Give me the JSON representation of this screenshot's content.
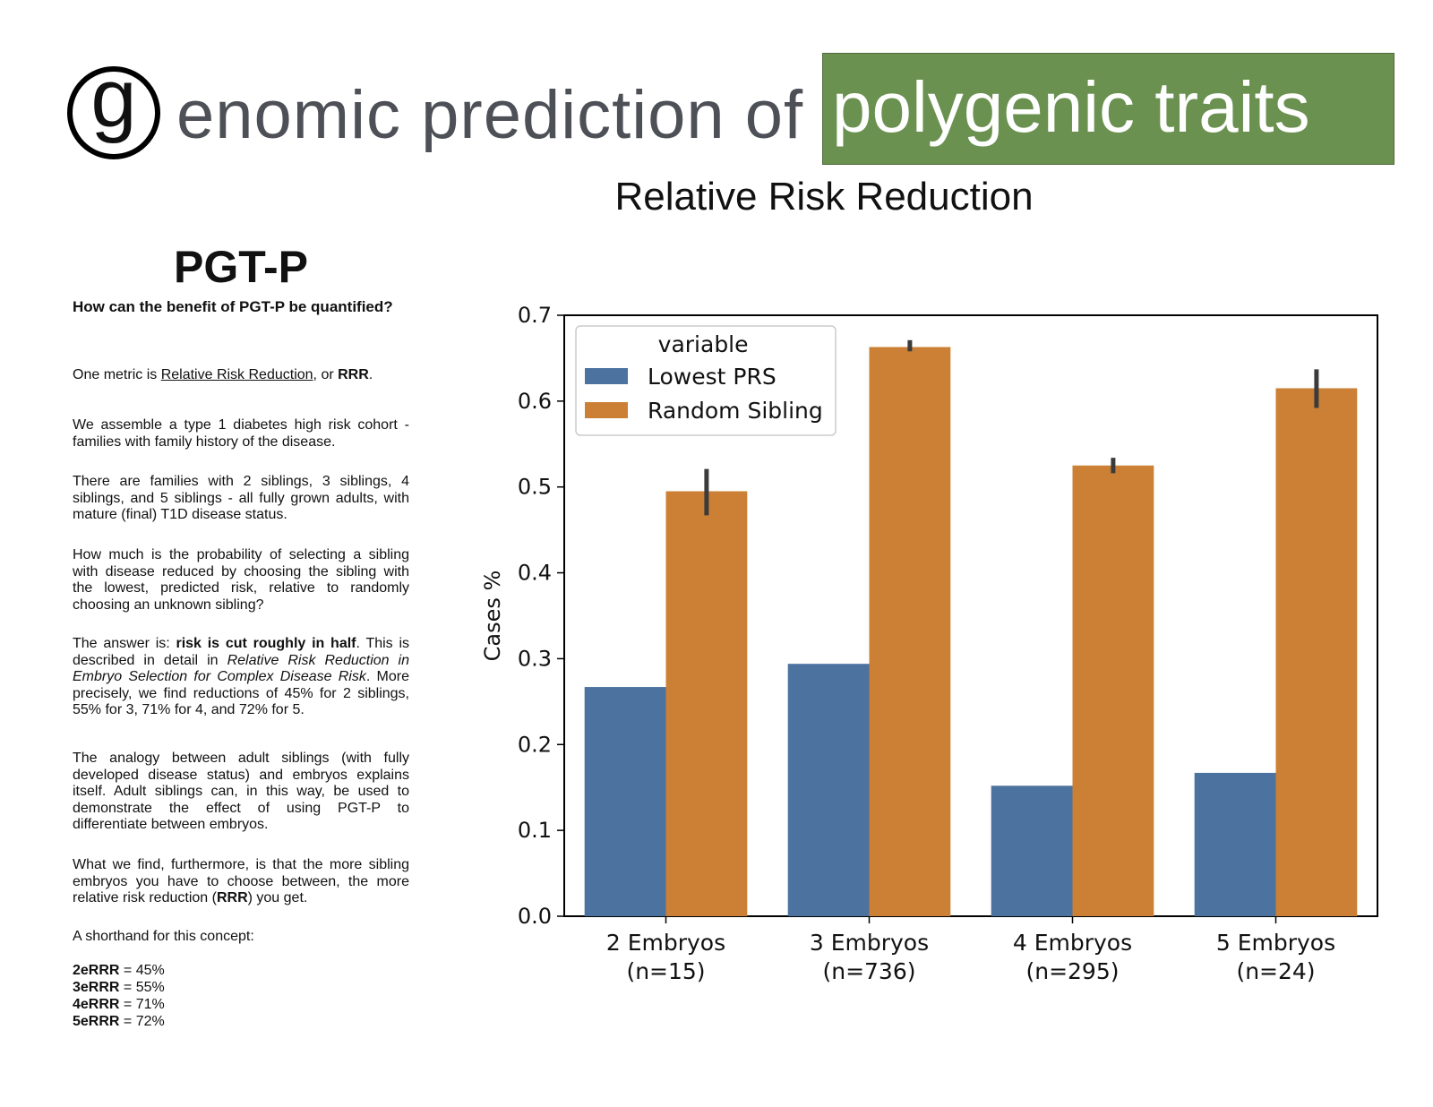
{
  "header": {
    "logo_letter": "g",
    "title_rest": "enomic prediction of",
    "highlight": "polygenic traits",
    "highlight_color": "#6a9150"
  },
  "left": {
    "heading": "PGT-P",
    "question": "How can the benefit of PGT-P be quantified?",
    "p1": {
      "a": "One metric is ",
      "link": "Relative Risk Reduction",
      "b": ", or ",
      "bold": "RRR",
      "c": "."
    },
    "p2": "We assemble a type 1 diabetes high risk cohort - families with family history of the disease.",
    "p3": "There are families  with 2 siblings, 3 siblings, 4 siblings, and 5 siblings - all fully grown adults, with mature (final) T1D disease status.",
    "p4": "How much is the probability of selecting a sibling with disease reduced by choosing the sibling with the lowest, predicted risk, relative to randomly choosing an unknown sibling?",
    "p5": {
      "a": "The answer is: ",
      "bold": "risk is cut roughly in half",
      "b": ". This is described in detail in ",
      "italic": "Relative Risk Reduction in Embryo Selection for Complex Disease Risk",
      "c": ". More precisely, we find reductions of 45% for 2 siblings, 55% for 3, 71% for 4, and 72% for 5."
    },
    "p6": "The analogy between adult siblings (with fully developed disease status) and embryos explains itself. Adult siblings can, in this way, be used to demonstrate the effect of using PGT-P to differentiate between embryos.",
    "p7": {
      "a": "What we find, furthermore, is that the more sibling embryos you have to choose between, the more relative risk reduction (",
      "bold": "RRR",
      "b": ") you get."
    },
    "p8": "A shorthand for this concept:",
    "rrr": [
      {
        "key": "2eRRR",
        "value": " = 45%"
      },
      {
        "key": "3eRRR",
        "value": " = 55%"
      },
      {
        "key": "4eRRR",
        "value": " = 71%"
      },
      {
        "key": "5eRRR",
        "value": " = 72%"
      }
    ]
  },
  "chart_data": {
    "type": "bar",
    "title": "Relative Risk Reduction",
    "xlabel": "",
    "ylabel": "Cases %",
    "ylim": [
      0,
      0.7
    ],
    "yticks": [
      "0.0",
      "0.1",
      "0.2",
      "0.3",
      "0.4",
      "0.5",
      "0.6",
      "0.7"
    ],
    "categories": [
      "2 Embryos\n(n=15)",
      "3 Embryos\n(n=736)",
      "4 Embryos\n(n=295)",
      "5 Embryos\n(n=24)"
    ],
    "legend": {
      "title": "variable",
      "placement": "top-left"
    },
    "series": [
      {
        "name": "Lowest PRS",
        "color": "#4c72a0",
        "values": [
          0.267,
          0.294,
          0.152,
          0.167
        ],
        "err_low": [
          null,
          null,
          null,
          null
        ],
        "err_high": [
          null,
          null,
          null,
          null
        ]
      },
      {
        "name": "Random Sibling",
        "color": "#cb8035",
        "values": [
          0.495,
          0.663,
          0.525,
          0.615
        ],
        "err_low": [
          0.467,
          0.658,
          0.516,
          0.592
        ],
        "err_high": [
          0.521,
          0.671,
          0.534,
          0.637
        ]
      }
    ]
  }
}
